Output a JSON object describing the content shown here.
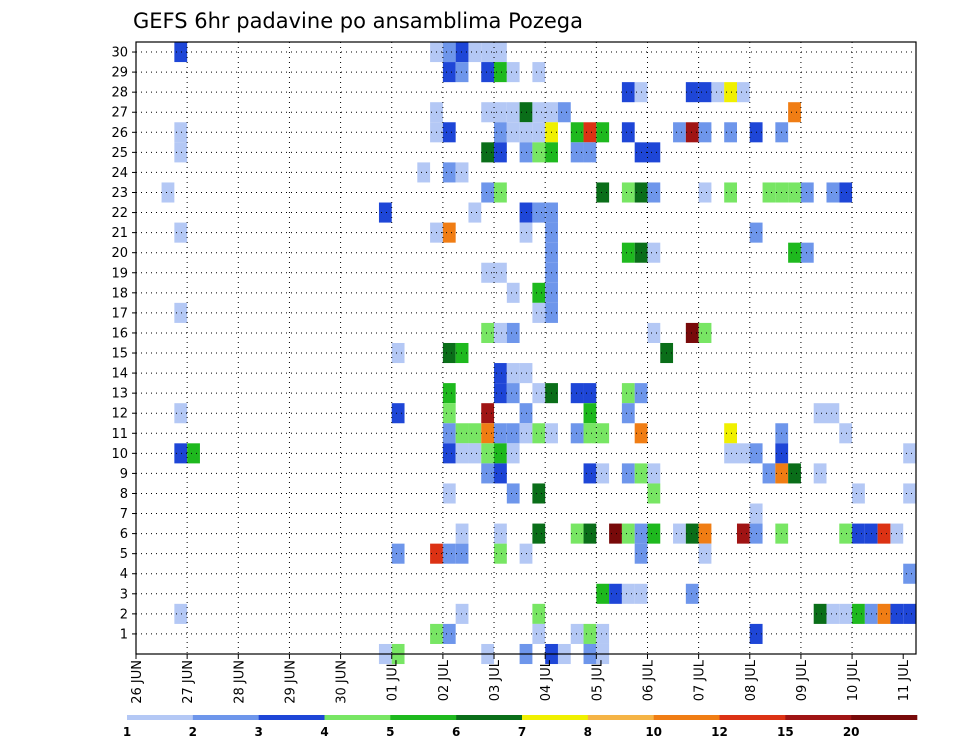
{
  "chart_data": {
    "type": "heatmap",
    "title": "GEFS 6hr padavine po ansamblima Pozega",
    "xlabel": "",
    "ylabel": "",
    "x_ticks": [
      "26 JUN",
      "27 JUN",
      "28 JUN",
      "29 JUN",
      "30 JUN",
      "01 JUL",
      "02 JUL",
      "03 JUL",
      "04 JUL",
      "05 JUL",
      "06 JUL",
      "07 JUL",
      "08 JUL",
      "09 JUL",
      "10 JUL",
      "11 JUL"
    ],
    "y_ticks": [
      "1",
      "2",
      "3",
      "4",
      "5",
      "6",
      "7",
      "8",
      "9",
      "10",
      "11",
      "12",
      "13",
      "14",
      "15",
      "16",
      "17",
      "18",
      "19",
      "20",
      "21",
      "22",
      "23",
      "24",
      "25",
      "26",
      "27",
      "28",
      "29",
      "30"
    ],
    "steps_per_day": 4,
    "x_range_steps": [
      0,
      61
    ],
    "y_range": [
      0,
      30
    ],
    "grid": true,
    "colorbar": {
      "labels": [
        "1",
        "2",
        "3",
        "4",
        "5",
        "6",
        "7",
        "8",
        "10",
        "12",
        "15",
        "20"
      ],
      "colors": [
        "#b4c8f5",
        "#6e96eb",
        "#1e46d7",
        "#78e664",
        "#1eb91e",
        "#0a6e19",
        "#f0f000",
        "#f5b446",
        "#f07d14",
        "#dc3214",
        "#a01414",
        "#780a0a"
      ]
    },
    "cells": [
      {
        "t": 3,
        "m": 30,
        "c": 3
      },
      {
        "t": 23,
        "m": 30,
        "c": 1
      },
      {
        "t": 24,
        "m": 30,
        "c": 2
      },
      {
        "t": 25,
        "m": 30,
        "c": 3
      },
      {
        "t": 26,
        "m": 30,
        "c": 1
      },
      {
        "t": 27,
        "m": 30,
        "c": 1
      },
      {
        "t": 28,
        "m": 30,
        "c": 1
      },
      {
        "t": 24,
        "m": 29,
        "c": 3
      },
      {
        "t": 25,
        "m": 29,
        "c": 2
      },
      {
        "t": 27,
        "m": 29,
        "c": 3
      },
      {
        "t": 28,
        "m": 29,
        "c": 5
      },
      {
        "t": 29,
        "m": 29,
        "c": 1
      },
      {
        "t": 31,
        "m": 29,
        "c": 1
      },
      {
        "t": 38,
        "m": 28,
        "c": 3
      },
      {
        "t": 39,
        "m": 28,
        "c": 1
      },
      {
        "t": 43,
        "m": 28,
        "c": 3
      },
      {
        "t": 44,
        "m": 28,
        "c": 3
      },
      {
        "t": 45,
        "m": 28,
        "c": 1
      },
      {
        "t": 46,
        "m": 28,
        "c": 7
      },
      {
        "t": 47,
        "m": 28,
        "c": 1
      },
      {
        "t": 23,
        "m": 27,
        "c": 1
      },
      {
        "t": 27,
        "m": 27,
        "c": 1
      },
      {
        "t": 28,
        "m": 27,
        "c": 1
      },
      {
        "t": 29,
        "m": 27,
        "c": 1
      },
      {
        "t": 30,
        "m": 27,
        "c": 6
      },
      {
        "t": 31,
        "m": 27,
        "c": 1
      },
      {
        "t": 32,
        "m": 27,
        "c": 1
      },
      {
        "t": 33,
        "m": 27,
        "c": 2
      },
      {
        "t": 51,
        "m": 27,
        "c": 9
      },
      {
        "t": 3,
        "m": 26,
        "c": 1
      },
      {
        "t": 23,
        "m": 26,
        "c": 1
      },
      {
        "t": 24,
        "m": 26,
        "c": 3
      },
      {
        "t": 28,
        "m": 26,
        "c": 2
      },
      {
        "t": 29,
        "m": 26,
        "c": 1
      },
      {
        "t": 30,
        "m": 26,
        "c": 1
      },
      {
        "t": 31,
        "m": 26,
        "c": 1
      },
      {
        "t": 32,
        "m": 26,
        "c": 7
      },
      {
        "t": 34,
        "m": 26,
        "c": 5
      },
      {
        "t": 35,
        "m": 26,
        "c": 10
      },
      {
        "t": 36,
        "m": 26,
        "c": 5
      },
      {
        "t": 38,
        "m": 26,
        "c": 3
      },
      {
        "t": 42,
        "m": 26,
        "c": 2
      },
      {
        "t": 43,
        "m": 26,
        "c": 11
      },
      {
        "t": 44,
        "m": 26,
        "c": 2
      },
      {
        "t": 46,
        "m": 26,
        "c": 2
      },
      {
        "t": 48,
        "m": 26,
        "c": 3
      },
      {
        "t": 50,
        "m": 26,
        "c": 2
      },
      {
        "t": 3,
        "m": 25,
        "c": 1
      },
      {
        "t": 27,
        "m": 25,
        "c": 6
      },
      {
        "t": 28,
        "m": 25,
        "c": 3
      },
      {
        "t": 30,
        "m": 25,
        "c": 2
      },
      {
        "t": 31,
        "m": 25,
        "c": 4
      },
      {
        "t": 32,
        "m": 25,
        "c": 5
      },
      {
        "t": 34,
        "m": 25,
        "c": 2
      },
      {
        "t": 35,
        "m": 25,
        "c": 2
      },
      {
        "t": 39,
        "m": 25,
        "c": 3
      },
      {
        "t": 40,
        "m": 25,
        "c": 3
      },
      {
        "t": 22,
        "m": 24,
        "c": 1
      },
      {
        "t": 24,
        "m": 24,
        "c": 2
      },
      {
        "t": 25,
        "m": 24,
        "c": 1
      },
      {
        "t": 2,
        "m": 23,
        "c": 1
      },
      {
        "t": 27,
        "m": 23,
        "c": 2
      },
      {
        "t": 28,
        "m": 23,
        "c": 4
      },
      {
        "t": 36,
        "m": 23,
        "c": 6
      },
      {
        "t": 38,
        "m": 23,
        "c": 4
      },
      {
        "t": 39,
        "m": 23,
        "c": 6
      },
      {
        "t": 40,
        "m": 23,
        "c": 2
      },
      {
        "t": 44,
        "m": 23,
        "c": 1
      },
      {
        "t": 46,
        "m": 23,
        "c": 4
      },
      {
        "t": 49,
        "m": 23,
        "c": 4
      },
      {
        "t": 50,
        "m": 23,
        "c": 4
      },
      {
        "t": 51,
        "m": 23,
        "c": 4
      },
      {
        "t": 52,
        "m": 23,
        "c": 2
      },
      {
        "t": 54,
        "m": 23,
        "c": 2
      },
      {
        "t": 55,
        "m": 23,
        "c": 3
      },
      {
        "t": 19,
        "m": 22,
        "c": 3
      },
      {
        "t": 26,
        "m": 22,
        "c": 1
      },
      {
        "t": 30,
        "m": 22,
        "c": 3
      },
      {
        "t": 31,
        "m": 22,
        "c": 2
      },
      {
        "t": 32,
        "m": 22,
        "c": 2
      },
      {
        "t": 3,
        "m": 21,
        "c": 1
      },
      {
        "t": 23,
        "m": 21,
        "c": 1
      },
      {
        "t": 24,
        "m": 21,
        "c": 9
      },
      {
        "t": 30,
        "m": 21,
        "c": 1
      },
      {
        "t": 32,
        "m": 21,
        "c": 2
      },
      {
        "t": 48,
        "m": 21,
        "c": 2
      },
      {
        "t": 32,
        "m": 20,
        "c": 2
      },
      {
        "t": 38,
        "m": 20,
        "c": 5
      },
      {
        "t": 39,
        "m": 20,
        "c": 6
      },
      {
        "t": 40,
        "m": 20,
        "c": 1
      },
      {
        "t": 51,
        "m": 20,
        "c": 5
      },
      {
        "t": 52,
        "m": 20,
        "c": 2
      },
      {
        "t": 27,
        "m": 19,
        "c": 1
      },
      {
        "t": 28,
        "m": 19,
        "c": 1
      },
      {
        "t": 32,
        "m": 19,
        "c": 2
      },
      {
        "t": 29,
        "m": 18,
        "c": 1
      },
      {
        "t": 31,
        "m": 18,
        "c": 5
      },
      {
        "t": 32,
        "m": 18,
        "c": 2
      },
      {
        "t": 3,
        "m": 17,
        "c": 1
      },
      {
        "t": 31,
        "m": 17,
        "c": 1
      },
      {
        "t": 32,
        "m": 17,
        "c": 2
      },
      {
        "t": 27,
        "m": 16,
        "c": 4
      },
      {
        "t": 28,
        "m": 16,
        "c": 1
      },
      {
        "t": 29,
        "m": 16,
        "c": 2
      },
      {
        "t": 40,
        "m": 16,
        "c": 1
      },
      {
        "t": 43,
        "m": 16,
        "c": 12
      },
      {
        "t": 44,
        "m": 16,
        "c": 4
      },
      {
        "t": 20,
        "m": 15,
        "c": 1
      },
      {
        "t": 24,
        "m": 15,
        "c": 6
      },
      {
        "t": 25,
        "m": 15,
        "c": 5
      },
      {
        "t": 41,
        "m": 15,
        "c": 6
      },
      {
        "t": 28,
        "m": 14,
        "c": 3
      },
      {
        "t": 29,
        "m": 14,
        "c": 1
      },
      {
        "t": 30,
        "m": 14,
        "c": 1
      },
      {
        "t": 28,
        "m": 13,
        "c": 3
      },
      {
        "t": 29,
        "m": 13,
        "c": 2
      },
      {
        "t": 24,
        "m": 13,
        "c": 5
      },
      {
        "t": 31,
        "m": 13,
        "c": 1
      },
      {
        "t": 32,
        "m": 13,
        "c": 6
      },
      {
        "t": 34,
        "m": 13,
        "c": 3
      },
      {
        "t": 35,
        "m": 13,
        "c": 3
      },
      {
        "t": 38,
        "m": 13,
        "c": 4
      },
      {
        "t": 39,
        "m": 13,
        "c": 2
      },
      {
        "t": 3,
        "m": 12,
        "c": 1
      },
      {
        "t": 20,
        "m": 12,
        "c": 3
      },
      {
        "t": 24,
        "m": 12,
        "c": 4
      },
      {
        "t": 27,
        "m": 12,
        "c": 11
      },
      {
        "t": 30,
        "m": 12,
        "c": 2
      },
      {
        "t": 35,
        "m": 12,
        "c": 5
      },
      {
        "t": 38,
        "m": 12,
        "c": 2
      },
      {
        "t": 53,
        "m": 12,
        "c": 1
      },
      {
        "t": 54,
        "m": 12,
        "c": 1
      },
      {
        "t": 24,
        "m": 11,
        "c": 2
      },
      {
        "t": 25,
        "m": 11,
        "c": 4
      },
      {
        "t": 26,
        "m": 11,
        "c": 4
      },
      {
        "t": 27,
        "m": 11,
        "c": 9
      },
      {
        "t": 28,
        "m": 11,
        "c": 2
      },
      {
        "t": 29,
        "m": 11,
        "c": 2
      },
      {
        "t": 30,
        "m": 11,
        "c": 1
      },
      {
        "t": 31,
        "m": 11,
        "c": 4
      },
      {
        "t": 32,
        "m": 11,
        "c": 1
      },
      {
        "t": 34,
        "m": 11,
        "c": 2
      },
      {
        "t": 35,
        "m": 11,
        "c": 4
      },
      {
        "t": 36,
        "m": 11,
        "c": 4
      },
      {
        "t": 39,
        "m": 11,
        "c": 9
      },
      {
        "t": 46,
        "m": 11,
        "c": 7
      },
      {
        "t": 50,
        "m": 11,
        "c": 2
      },
      {
        "t": 55,
        "m": 11,
        "c": 1
      },
      {
        "t": 3,
        "m": 10,
        "c": 3
      },
      {
        "t": 4,
        "m": 10,
        "c": 5
      },
      {
        "t": 24,
        "m": 10,
        "c": 3
      },
      {
        "t": 25,
        "m": 10,
        "c": 1
      },
      {
        "t": 26,
        "m": 10,
        "c": 1
      },
      {
        "t": 27,
        "m": 10,
        "c": 4
      },
      {
        "t": 28,
        "m": 10,
        "c": 5
      },
      {
        "t": 29,
        "m": 10,
        "c": 1
      },
      {
        "t": 46,
        "m": 10,
        "c": 1
      },
      {
        "t": 47,
        "m": 10,
        "c": 1
      },
      {
        "t": 48,
        "m": 10,
        "c": 2
      },
      {
        "t": 50,
        "m": 10,
        "c": 3
      },
      {
        "t": 60,
        "m": 10,
        "c": 1
      },
      {
        "t": 27,
        "m": 9,
        "c": 2
      },
      {
        "t": 28,
        "m": 9,
        "c": 3
      },
      {
        "t": 35,
        "m": 9,
        "c": 3
      },
      {
        "t": 36,
        "m": 9,
        "c": 1
      },
      {
        "t": 38,
        "m": 9,
        "c": 2
      },
      {
        "t": 39,
        "m": 9,
        "c": 4
      },
      {
        "t": 40,
        "m": 9,
        "c": 1
      },
      {
        "t": 49,
        "m": 9,
        "c": 2
      },
      {
        "t": 50,
        "m": 9,
        "c": 9
      },
      {
        "t": 51,
        "m": 9,
        "c": 6
      },
      {
        "t": 53,
        "m": 9,
        "c": 1
      },
      {
        "t": 24,
        "m": 8,
        "c": 1
      },
      {
        "t": 29,
        "m": 8,
        "c": 2
      },
      {
        "t": 31,
        "m": 8,
        "c": 6
      },
      {
        "t": 40,
        "m": 8,
        "c": 4
      },
      {
        "t": 56,
        "m": 8,
        "c": 1
      },
      {
        "t": 60,
        "m": 8,
        "c": 1
      },
      {
        "t": 48,
        "m": 7,
        "c": 1
      },
      {
        "t": 25,
        "m": 6,
        "c": 1
      },
      {
        "t": 28,
        "m": 6,
        "c": 1
      },
      {
        "t": 31,
        "m": 6,
        "c": 6
      },
      {
        "t": 34,
        "m": 6,
        "c": 4
      },
      {
        "t": 35,
        "m": 6,
        "c": 6
      },
      {
        "t": 37,
        "m": 6,
        "c": 12
      },
      {
        "t": 38,
        "m": 6,
        "c": 4
      },
      {
        "t": 39,
        "m": 6,
        "c": 2
      },
      {
        "t": 40,
        "m": 6,
        "c": 5
      },
      {
        "t": 42,
        "m": 6,
        "c": 1
      },
      {
        "t": 43,
        "m": 6,
        "c": 6
      },
      {
        "t": 44,
        "m": 6,
        "c": 9
      },
      {
        "t": 47,
        "m": 6,
        "c": 11
      },
      {
        "t": 48,
        "m": 6,
        "c": 2
      },
      {
        "t": 50,
        "m": 6,
        "c": 4
      },
      {
        "t": 55,
        "m": 6,
        "c": 4
      },
      {
        "t": 56,
        "m": 6,
        "c": 3
      },
      {
        "t": 57,
        "m": 6,
        "c": 3
      },
      {
        "t": 58,
        "m": 6,
        "c": 10
      },
      {
        "t": 59,
        "m": 6,
        "c": 1
      },
      {
        "t": 20,
        "m": 5,
        "c": 2
      },
      {
        "t": 23,
        "m": 5,
        "c": 10
      },
      {
        "t": 24,
        "m": 5,
        "c": 2
      },
      {
        "t": 25,
        "m": 5,
        "c": 2
      },
      {
        "t": 28,
        "m": 5,
        "c": 4
      },
      {
        "t": 30,
        "m": 5,
        "c": 1
      },
      {
        "t": 39,
        "m": 5,
        "c": 2
      },
      {
        "t": 44,
        "m": 5,
        "c": 1
      },
      {
        "t": 60,
        "m": 4,
        "c": 2
      },
      {
        "t": 36,
        "m": 3,
        "c": 5
      },
      {
        "t": 37,
        "m": 3,
        "c": 3
      },
      {
        "t": 38,
        "m": 3,
        "c": 1
      },
      {
        "t": 39,
        "m": 3,
        "c": 1
      },
      {
        "t": 43,
        "m": 3,
        "c": 2
      },
      {
        "t": 3,
        "m": 2,
        "c": 1
      },
      {
        "t": 25,
        "m": 2,
        "c": 1
      },
      {
        "t": 31,
        "m": 2,
        "c": 4
      },
      {
        "t": 53,
        "m": 2,
        "c": 6
      },
      {
        "t": 54,
        "m": 2,
        "c": 1
      },
      {
        "t": 55,
        "m": 2,
        "c": 1
      },
      {
        "t": 56,
        "m": 2,
        "c": 5
      },
      {
        "t": 57,
        "m": 2,
        "c": 2
      },
      {
        "t": 58,
        "m": 2,
        "c": 9
      },
      {
        "t": 59,
        "m": 2,
        "c": 3
      },
      {
        "t": 60,
        "m": 2,
        "c": 3
      },
      {
        "t": 23,
        "m": 1,
        "c": 4
      },
      {
        "t": 24,
        "m": 1,
        "c": 2
      },
      {
        "t": 31,
        "m": 1,
        "c": 1
      },
      {
        "t": 34,
        "m": 1,
        "c": 1
      },
      {
        "t": 35,
        "m": 1,
        "c": 4
      },
      {
        "t": 36,
        "m": 1,
        "c": 1
      },
      {
        "t": 48,
        "m": 1,
        "c": 3
      },
      {
        "t": 19,
        "m": 0,
        "c": 1
      },
      {
        "t": 20,
        "m": 0,
        "c": 4
      },
      {
        "t": 27,
        "m": 0,
        "c": 1
      },
      {
        "t": 30,
        "m": 0,
        "c": 2
      },
      {
        "t": 32,
        "m": 0,
        "c": 3
      },
      {
        "t": 33,
        "m": 0,
        "c": 1
      },
      {
        "t": 35,
        "m": 0,
        "c": 2
      },
      {
        "t": 36,
        "m": 0,
        "c": 1
      }
    ]
  }
}
